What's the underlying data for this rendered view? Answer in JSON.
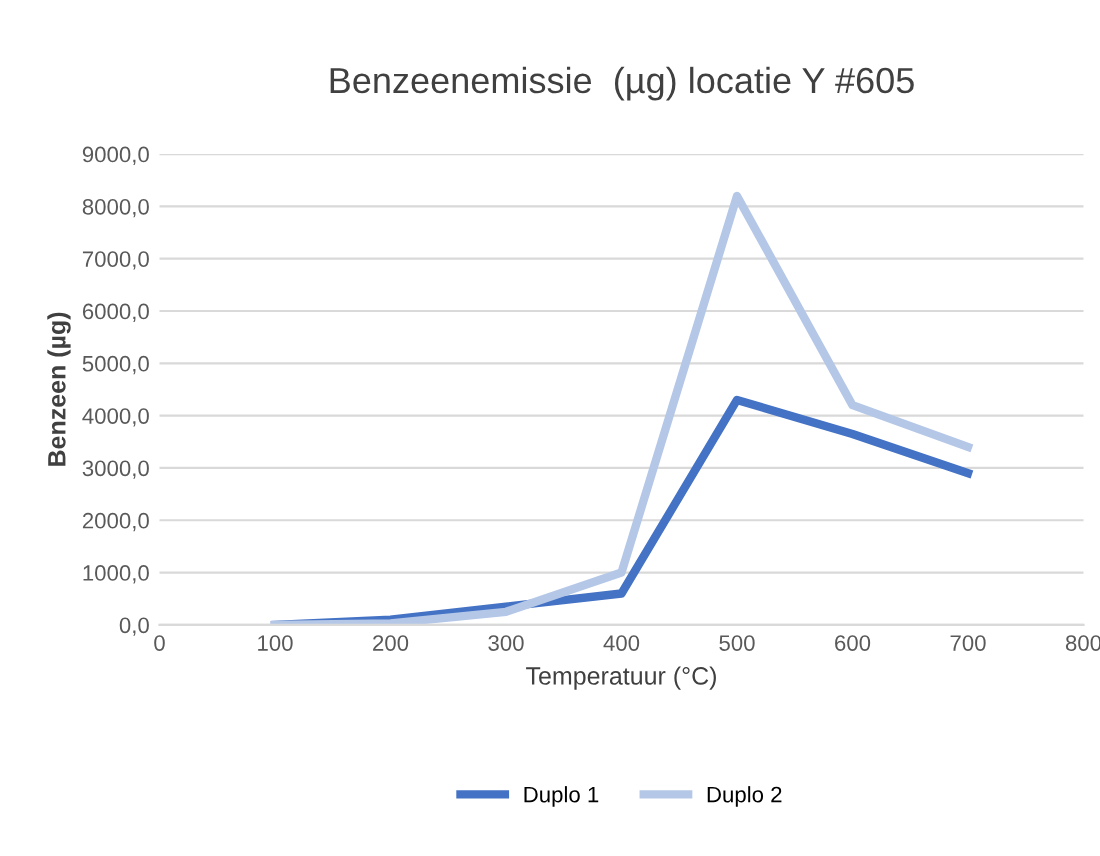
{
  "chart_data": {
    "type": "line",
    "title": "Benzeenemissie  (µg) locatie Y #605",
    "xlabel": "Temperatuur (°C)",
    "ylabel": "Benzeen (µg)",
    "x": [
      100,
      200,
      300,
      400,
      500,
      600,
      700
    ],
    "series": [
      {
        "name": "Duplo 1",
        "color": "#4472c4",
        "values": [
          0,
          100,
          350,
          600,
          4300,
          3650,
          2900
        ]
      },
      {
        "name": "Duplo 2",
        "color": "#b4c7e7",
        "values": [
          0,
          30,
          250,
          1000,
          8200,
          4200,
          3400
        ]
      }
    ],
    "xlim": [
      0,
      800
    ],
    "xticks": [
      0,
      100,
      200,
      300,
      400,
      500,
      600,
      700,
      800
    ],
    "ylim": [
      0,
      9000
    ],
    "yticks": [
      {
        "value": 0,
        "label": "0,0"
      },
      {
        "value": 1000,
        "label": "1000,0"
      },
      {
        "value": 2000,
        "label": "2000,0"
      },
      {
        "value": 3000,
        "label": "3000,0"
      },
      {
        "value": 4000,
        "label": "4000,0"
      },
      {
        "value": 5000,
        "label": "5000,0"
      },
      {
        "value": 6000,
        "label": "6000,0"
      },
      {
        "value": 7000,
        "label": "7000,0"
      },
      {
        "value": 8000,
        "label": "8000,0"
      },
      {
        "value": 9000,
        "label": "9000,0"
      }
    ],
    "grid": "y",
    "legend": "bottom",
    "marker": "none",
    "line_style": "solid"
  }
}
